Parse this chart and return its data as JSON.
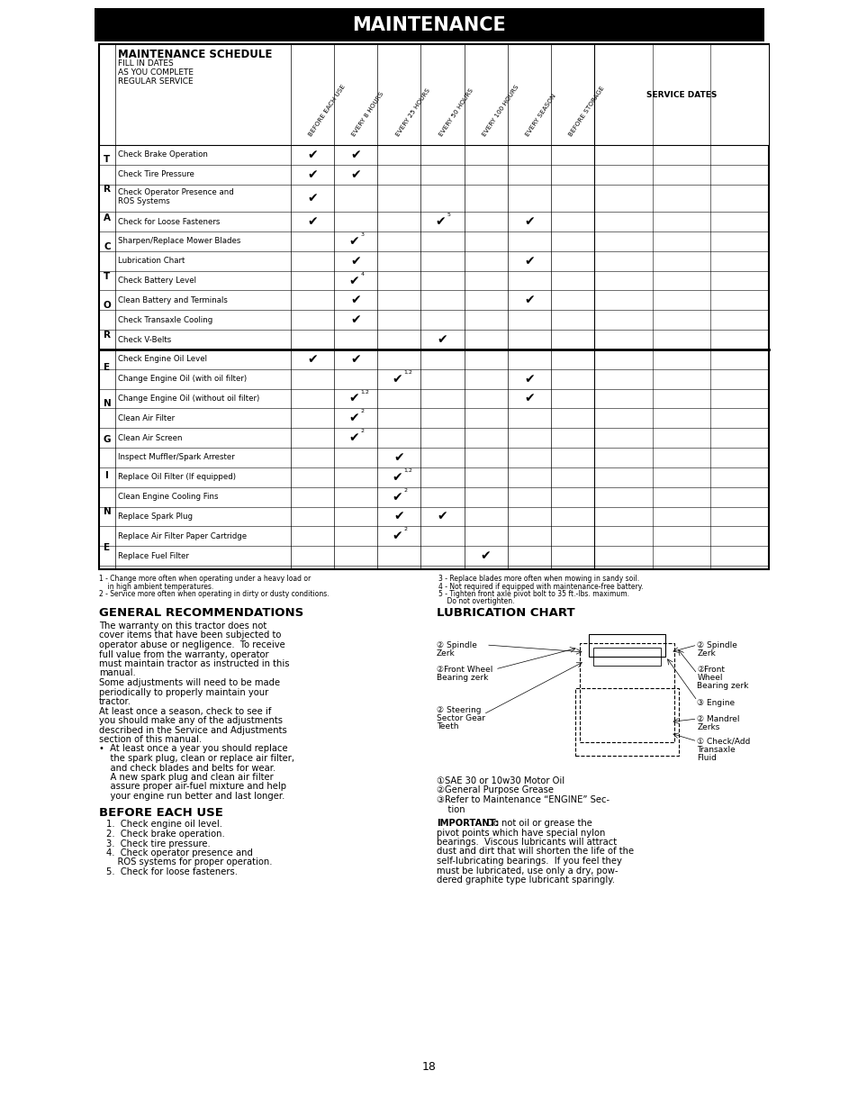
{
  "title": "MAINTENANCE",
  "schedule_title": "MAINTENANCE SCHEDULE",
  "schedule_subtitle": [
    "FILL IN DATES",
    "AS YOU COMPLETE",
    "REGULAR SERVICE"
  ],
  "col_headers": [
    "BEFORE EACH USE",
    "EVERY 8 HOURS",
    "EVERY 25 HOURS",
    "EVERY 50 HOURS",
    "EVERY 100 HOURS",
    "EVERY SEASON",
    "BEFORE STORAGE"
  ],
  "tractor_rows": [
    {
      "name": "Check Brake Operation",
      "checks": [
        1,
        1,
        0,
        0,
        0,
        0,
        0
      ]
    },
    {
      "name": "Check Tire Pressure",
      "checks": [
        1,
        1,
        0,
        0,
        0,
        0,
        0
      ]
    },
    {
      "name": "Check Operator Presence and\nROS Systems",
      "checks": [
        1,
        0,
        0,
        0,
        0,
        0,
        0
      ]
    },
    {
      "name": "Check for Loose Fasteners",
      "checks": [
        1,
        0,
        0,
        "5",
        0,
        1,
        0
      ]
    },
    {
      "name": "Sharpen/Replace Mower Blades",
      "checks": [
        0,
        "3",
        0,
        0,
        0,
        0,
        0
      ]
    },
    {
      "name": "Lubrication Chart",
      "checks": [
        0,
        1,
        0,
        0,
        0,
        1,
        0
      ]
    },
    {
      "name": "Check Battery Level",
      "checks": [
        0,
        "4",
        0,
        0,
        0,
        0,
        0
      ]
    },
    {
      "name": "Clean Battery and Terminals",
      "checks": [
        0,
        1,
        0,
        0,
        0,
        1,
        0
      ]
    },
    {
      "name": "Check Transaxle Cooling",
      "checks": [
        0,
        1,
        0,
        0,
        0,
        0,
        0
      ]
    },
    {
      "name": "Check V-Belts",
      "checks": [
        0,
        0,
        0,
        1,
        0,
        0,
        0
      ]
    }
  ],
  "engine_rows": [
    {
      "name": "Check Engine Oil Level",
      "checks": [
        1,
        1,
        0,
        0,
        0,
        0,
        0
      ]
    },
    {
      "name": "Change Engine Oil (with oil filter)",
      "checks": [
        0,
        0,
        "1,2",
        0,
        0,
        1,
        0
      ]
    },
    {
      "name": "Change Engine Oil (without oil filter)",
      "checks": [
        0,
        "1,2",
        0,
        0,
        0,
        1,
        0
      ]
    },
    {
      "name": "Clean Air Filter",
      "checks": [
        0,
        "2",
        0,
        0,
        0,
        0,
        0
      ]
    },
    {
      "name": "Clean Air Screen",
      "checks": [
        0,
        "2",
        0,
        0,
        0,
        0,
        0
      ]
    },
    {
      "name": "Inspect Muffler/Spark Arrester",
      "checks": [
        0,
        0,
        1,
        0,
        0,
        0,
        0
      ]
    },
    {
      "name": "Replace Oil Filter (If equipped)",
      "checks": [
        0,
        0,
        "1,2",
        0,
        0,
        0,
        0
      ]
    },
    {
      "name": "Clean Engine Cooling Fins",
      "checks": [
        0,
        0,
        "2",
        0,
        0,
        0,
        0
      ]
    },
    {
      "name": "Replace Spark Plug",
      "checks": [
        0,
        0,
        1,
        1,
        0,
        0,
        0
      ]
    },
    {
      "name": "Replace Air Filter Paper Cartridge",
      "checks": [
        0,
        0,
        "2",
        0,
        0,
        0,
        0
      ]
    },
    {
      "name": "Replace Fuel Filter",
      "checks": [
        0,
        0,
        0,
        0,
        1,
        0,
        0
      ]
    }
  ],
  "footnotes_left": [
    "1 - Change more often when operating under a heavy load or",
    "    in high ambient temperatures.",
    "2 - Service more often when operating in dirty or dusty conditions."
  ],
  "footnotes_right": [
    "3 - Replace blades more often when mowing in sandy soil.",
    "4 - Not required if equipped with maintenance-free battery.",
    "5 - Tighten front axle pivot bolt to 35 ft.-lbs. maximum.",
    "    Do not overtighten."
  ],
  "gen_rec_title": "GENERAL RECOMMENDATIONS",
  "gen_rec_text": [
    "The warranty on this tractor does not",
    "cover items that have been subjected to",
    "operator abuse or negligence.  To receive",
    "full value from the warranty, operator",
    "must maintain tractor as instructed in this",
    "manual.",
    "Some adjustments will need to be made",
    "periodically to properly maintain your",
    "tractor.",
    "At least once a season, check to see if",
    "you should make any of the adjustments",
    "described in the Service and Adjustments",
    "section of this manual.",
    "•  At least once a year you should replace",
    "    the spark plug, clean or replace air filter,",
    "    and check blades and belts for wear.",
    "    A new spark plug and clean air filter",
    "    assure proper air-fuel mixture and help",
    "    your engine run better and last longer."
  ],
  "before_use_title": "BEFORE EACH USE",
  "before_use_items": [
    "1.  Check engine oil level.",
    "2.  Check brake operation.",
    "3.  Check tire pressure.",
    "4.  Check operator presence and",
    "    ROS systems for proper operation.",
    "5.  Check for loose fasteners."
  ],
  "lub_chart_title": "LUBRICATION CHART",
  "lub_legend": [
    "①SAE 30 or 10w30 Motor Oil",
    "②General Purpose Grease",
    "③Refer to Maintenance “ENGINE” Sec-",
    "    tion"
  ],
  "important_title": "IMPORTANT:",
  "important_lines": [
    " Do not oil or grease the",
    "pivot points which have special nylon",
    "bearings.  Viscous lubricants will attract",
    "dust and dirt that will shorten the life of the",
    "self-lubricating bearings.  If you feel they",
    "must be lubricated, use only a dry, pow-",
    "dered graphite type lubricant sparingly."
  ],
  "page_number": "18"
}
